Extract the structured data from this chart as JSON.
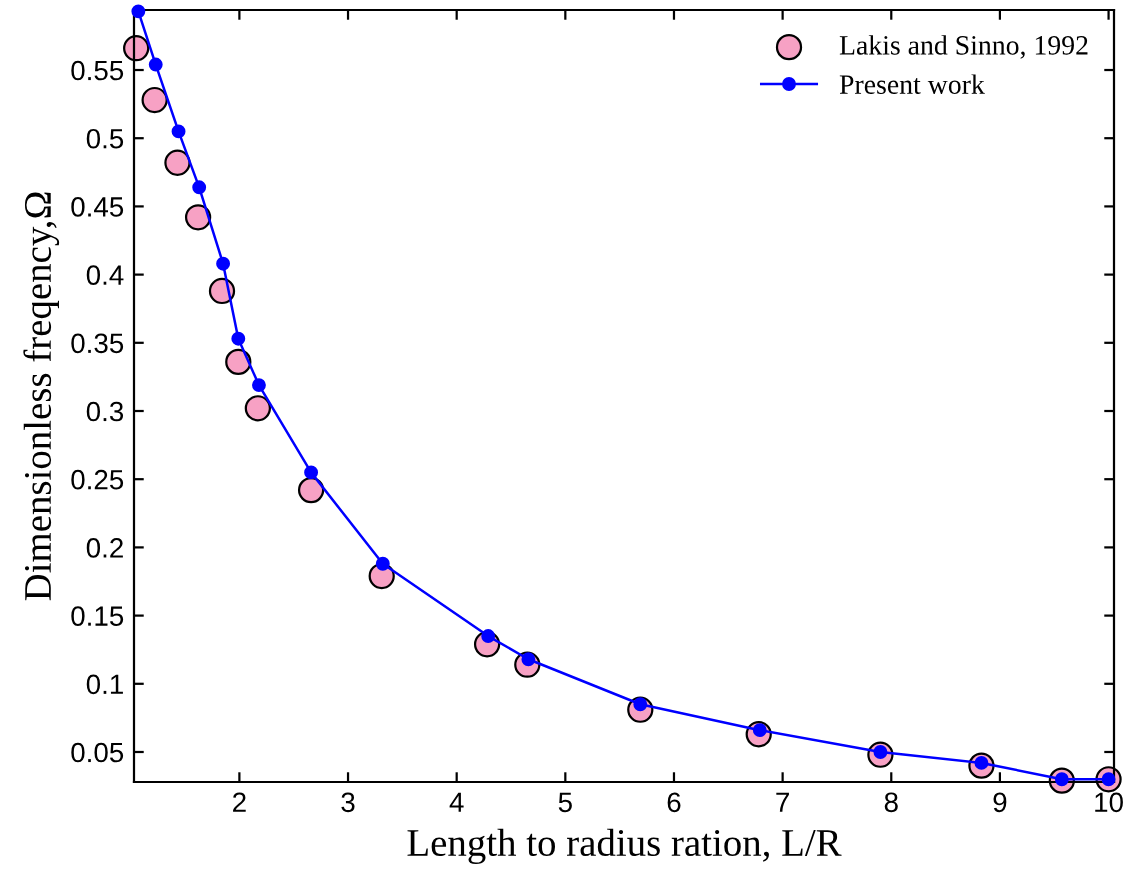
{
  "chart_data": {
    "type": "line",
    "xlabel": "Length to radius ration, L/R",
    "ylabel": "Dimensionless freqency,Ω",
    "xlim": [
      1.03,
      10.05
    ],
    "ylim": [
      0.028,
      0.594
    ],
    "xticks": [
      2,
      3,
      4,
      5,
      6,
      7,
      8,
      9,
      10
    ],
    "yticks": [
      0.05,
      0.1,
      0.15,
      0.2,
      0.25,
      0.3,
      0.35,
      0.4,
      0.45,
      0.5,
      0.55
    ],
    "legend": "top right",
    "grid": false,
    "series": [
      {
        "name": "Lakis and Sinno, 1992",
        "type": "scatter",
        "marker": "circle",
        "color": "#f7a1c4",
        "x": [
          1.05,
          1.22,
          1.43,
          1.62,
          1.84,
          1.99,
          2.17,
          2.66,
          3.31,
          4.28,
          4.65,
          5.69,
          6.78,
          7.9,
          8.83,
          9.57,
          10.0
        ],
        "values": [
          0.566,
          0.528,
          0.482,
          0.442,
          0.388,
          0.336,
          0.302,
          0.242,
          0.179,
          0.129,
          0.114,
          0.081,
          0.063,
          0.048,
          0.04,
          0.029,
          0.03
        ]
      },
      {
        "name": "Present work",
        "marker": "circle",
        "line_style": "solid",
        "color": "#0000ff",
        "x": [
          1.07,
          1.23,
          1.44,
          1.63,
          1.85,
          1.99,
          2.18,
          2.66,
          3.32,
          4.29,
          4.66,
          5.69,
          6.79,
          7.9,
          8.83,
          9.57,
          10.0
        ],
        "values": [
          0.593,
          0.554,
          0.505,
          0.464,
          0.408,
          0.353,
          0.319,
          0.255,
          0.188,
          0.135,
          0.118,
          0.085,
          0.066,
          0.05,
          0.042,
          0.03,
          0.03
        ]
      }
    ]
  }
}
